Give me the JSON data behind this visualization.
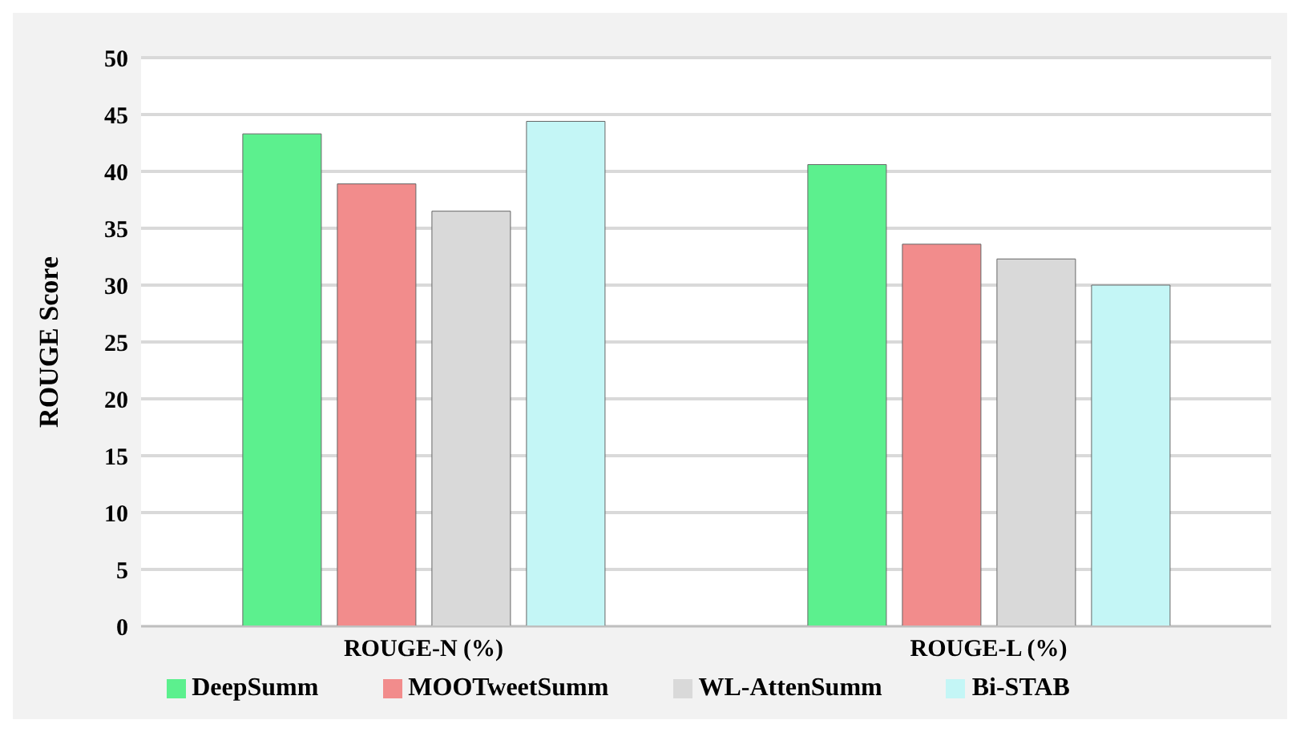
{
  "chart_data": {
    "type": "bar",
    "ylabel": "ROUGE Score",
    "categories": [
      "ROUGE-N (%)",
      "ROUGE-L (%)"
    ],
    "series": [
      {
        "name": "DeepSumm",
        "color": "#5cf08e",
        "values": [
          43.3,
          40.6
        ]
      },
      {
        "name": "MOOTweetSumm",
        "color": "#f28c8c",
        "values": [
          38.9,
          33.6
        ]
      },
      {
        "name": "WL-AttenSumm",
        "color": "#d9d9d9",
        "values": [
          36.5,
          32.3
        ]
      },
      {
        "name": "Bi-STAB",
        "color": "#c4f6f6",
        "values": [
          44.4,
          30.0
        ]
      }
    ],
    "ylim": [
      0,
      50
    ],
    "yticks": [
      0,
      5,
      10,
      15,
      20,
      25,
      30,
      35,
      40,
      45,
      50
    ],
    "grid": "y",
    "legend": "bottom"
  }
}
